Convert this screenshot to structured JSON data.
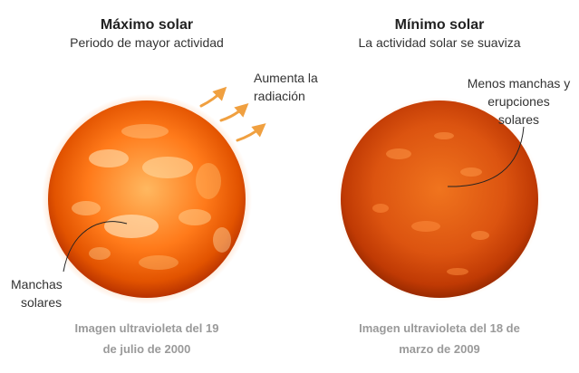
{
  "left": {
    "title": "Máximo solar",
    "subtitle": "Periodo de mayor actividad",
    "radiation_label_line1": "Aumenta la",
    "radiation_label_line2": "radiación",
    "spots_label_line1": "Manchas",
    "spots_label_line2": "solares",
    "caption_line1": "Imagen ultravioleta del 19",
    "caption_line2": "de julio de 2000"
  },
  "right": {
    "title": "Mínimo solar",
    "subtitle": "La actividad solar se suaviza",
    "spots_label_line1": "Menos manchas y",
    "spots_label_line2": "erupciones",
    "spots_label_line3": "solares",
    "caption_line1": "Imagen ultravioleta del 18 de",
    "caption_line2": "marzo de 2009"
  },
  "colors": {
    "sun_core": "#ff9a2e",
    "sun_edge": "#c83a00",
    "arrow": "#f0a040",
    "pointer": "#222222",
    "caption": "#9a9a9a"
  }
}
